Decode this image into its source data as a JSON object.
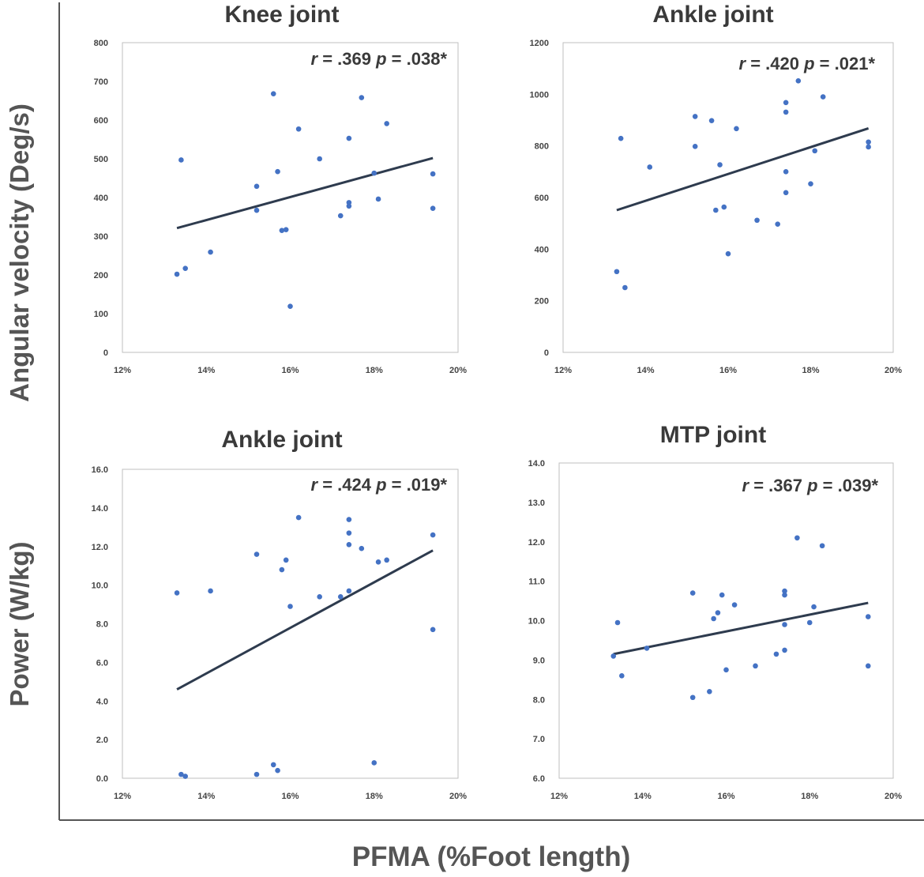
{
  "figure": {
    "ylabel_top": "Angular velocity (Deg/s)",
    "ylabel_bottom": "Power (W/kg)",
    "xlabel": "PFMA (%Foot length)"
  },
  "colors": {
    "points": "#4472C4",
    "trendline": "#2E3B4E",
    "axes": "#555555",
    "plot_border": "#BFBFBF"
  },
  "chart_data": [
    {
      "type": "scatter",
      "title": "Knee joint",
      "annotation": {
        "r_label": "r",
        "r_value": " = .369 ",
        "p_label": "p",
        "p_value": " = .038*"
      },
      "xlim": [
        0.12,
        0.2
      ],
      "ylim": [
        0,
        800
      ],
      "xticks": [
        "12%",
        "14%",
        "16%",
        "18%",
        "20%"
      ],
      "yticks": [
        "0",
        "100",
        "200",
        "300",
        "400",
        "500",
        "600",
        "700",
        "800"
      ],
      "xtick_values": [
        0.12,
        0.14,
        0.16,
        0.18,
        0.2
      ],
      "ytick_values": [
        0,
        100,
        200,
        300,
        400,
        500,
        600,
        700,
        800
      ],
      "points": [
        [
          0.133,
          202
        ],
        [
          0.134,
          497
        ],
        [
          0.135,
          217
        ],
        [
          0.141,
          259
        ],
        [
          0.152,
          429
        ],
        [
          0.152,
          367
        ],
        [
          0.156,
          668
        ],
        [
          0.157,
          467
        ],
        [
          0.158,
          315
        ],
        [
          0.159,
          317
        ],
        [
          0.16,
          119
        ],
        [
          0.162,
          577
        ],
        [
          0.167,
          500
        ],
        [
          0.172,
          353
        ],
        [
          0.174,
          553
        ],
        [
          0.174,
          387
        ],
        [
          0.174,
          378
        ],
        [
          0.177,
          658
        ],
        [
          0.18,
          463
        ],
        [
          0.181,
          396
        ],
        [
          0.183,
          591
        ],
        [
          0.194,
          461
        ],
        [
          0.194,
          372
        ]
      ],
      "trendline": [
        [
          0.133,
          321
        ],
        [
          0.194,
          502
        ]
      ]
    },
    {
      "type": "scatter",
      "title": "Ankle joint",
      "annotation": {
        "r_label": "r",
        "r_value": " = .420 ",
        "p_label": "p",
        "p_value": " = .021*"
      },
      "xlim": [
        0.12,
        0.2
      ],
      "ylim": [
        0,
        1200
      ],
      "xticks": [
        "12%",
        "14%",
        "16%",
        "18%",
        "20%"
      ],
      "yticks": [
        "0",
        "200",
        "400",
        "600",
        "800",
        "1000",
        "1200"
      ],
      "xtick_values": [
        0.12,
        0.14,
        0.16,
        0.18,
        0.2
      ],
      "ytick_values": [
        0,
        200,
        400,
        600,
        800,
        1000,
        1200
      ],
      "points": [
        [
          0.133,
          313
        ],
        [
          0.134,
          829
        ],
        [
          0.135,
          251
        ],
        [
          0.141,
          718
        ],
        [
          0.152,
          914
        ],
        [
          0.152,
          798
        ],
        [
          0.156,
          898
        ],
        [
          0.157,
          551
        ],
        [
          0.158,
          727
        ],
        [
          0.159,
          563
        ],
        [
          0.16,
          382
        ],
        [
          0.162,
          867
        ],
        [
          0.167,
          512
        ],
        [
          0.172,
          497
        ],
        [
          0.174,
          968
        ],
        [
          0.174,
          931
        ],
        [
          0.174,
          700
        ],
        [
          0.174,
          619
        ],
        [
          0.177,
          1052
        ],
        [
          0.18,
          653
        ],
        [
          0.181,
          781
        ],
        [
          0.183,
          990
        ],
        [
          0.194,
          815
        ],
        [
          0.194,
          796
        ]
      ],
      "trendline": [
        [
          0.133,
          551
        ],
        [
          0.194,
          868
        ]
      ]
    },
    {
      "type": "scatter",
      "title": "Ankle joint",
      "annotation": {
        "r_label": "r",
        "r_value": " = .424 ",
        "p_label": "p",
        "p_value": " = .019*"
      },
      "xlim": [
        0.12,
        0.2
      ],
      "ylim": [
        0,
        16
      ],
      "xticks": [
        "12%",
        "14%",
        "16%",
        "18%",
        "20%"
      ],
      "yticks": [
        "0.0",
        "2.0",
        "4.0",
        "6.0",
        "8.0",
        "10.0",
        "12.0",
        "14.0",
        "16.0"
      ],
      "xtick_values": [
        0.12,
        0.14,
        0.16,
        0.18,
        0.2
      ],
      "ytick_values": [
        0,
        2,
        4,
        6,
        8,
        10,
        12,
        14,
        16
      ],
      "points": [
        [
          0.133,
          9.6
        ],
        [
          0.134,
          0.2
        ],
        [
          0.135,
          0.1
        ],
        [
          0.141,
          9.7
        ],
        [
          0.152,
          11.6
        ],
        [
          0.152,
          0.2
        ],
        [
          0.156,
          0.7
        ],
        [
          0.157,
          0.4
        ],
        [
          0.158,
          10.8
        ],
        [
          0.159,
          11.3
        ],
        [
          0.16,
          8.9
        ],
        [
          0.162,
          13.5
        ],
        [
          0.167,
          9.4
        ],
        [
          0.172,
          9.4
        ],
        [
          0.174,
          13.4
        ],
        [
          0.174,
          12.7
        ],
        [
          0.174,
          12.1
        ],
        [
          0.174,
          9.7
        ],
        [
          0.177,
          11.9
        ],
        [
          0.18,
          0.8
        ],
        [
          0.181,
          11.2
        ],
        [
          0.183,
          11.3
        ],
        [
          0.194,
          12.6
        ],
        [
          0.194,
          7.7
        ]
      ],
      "trendline": [
        [
          0.133,
          4.6
        ],
        [
          0.194,
          11.8
        ]
      ]
    },
    {
      "type": "scatter",
      "title": "MTP joint",
      "annotation": {
        "r_label": "r",
        "r_value": " = .367 ",
        "p_label": "p",
        "p_value": " = .039*"
      },
      "xlim": [
        0.12,
        0.2
      ],
      "ylim": [
        6,
        14
      ],
      "xticks": [
        "12%",
        "14%",
        "16%",
        "18%",
        "20%"
      ],
      "yticks": [
        "6.0",
        "7.0",
        "8.0",
        "9.0",
        "10.0",
        "11.0",
        "12.0",
        "13.0",
        "14.0"
      ],
      "xtick_values": [
        0.12,
        0.14,
        0.16,
        0.18,
        0.2
      ],
      "ytick_values": [
        6,
        7,
        8,
        9,
        10,
        11,
        12,
        13,
        14
      ],
      "points": [
        [
          0.133,
          9.1
        ],
        [
          0.134,
          9.95
        ],
        [
          0.135,
          8.6
        ],
        [
          0.141,
          9.3
        ],
        [
          0.152,
          10.7
        ],
        [
          0.152,
          8.05
        ],
        [
          0.156,
          8.2
        ],
        [
          0.157,
          10.05
        ],
        [
          0.158,
          10.2
        ],
        [
          0.159,
          10.65
        ],
        [
          0.16,
          8.75
        ],
        [
          0.162,
          10.4
        ],
        [
          0.167,
          8.85
        ],
        [
          0.172,
          9.15
        ],
        [
          0.174,
          10.75
        ],
        [
          0.174,
          10.65
        ],
        [
          0.174,
          9.9
        ],
        [
          0.174,
          9.25
        ],
        [
          0.177,
          12.1
        ],
        [
          0.18,
          9.95
        ],
        [
          0.181,
          10.35
        ],
        [
          0.183,
          11.9
        ],
        [
          0.194,
          10.1
        ],
        [
          0.194,
          8.85
        ]
      ],
      "trendline": [
        [
          0.133,
          9.15
        ],
        [
          0.194,
          10.45
        ]
      ]
    }
  ]
}
